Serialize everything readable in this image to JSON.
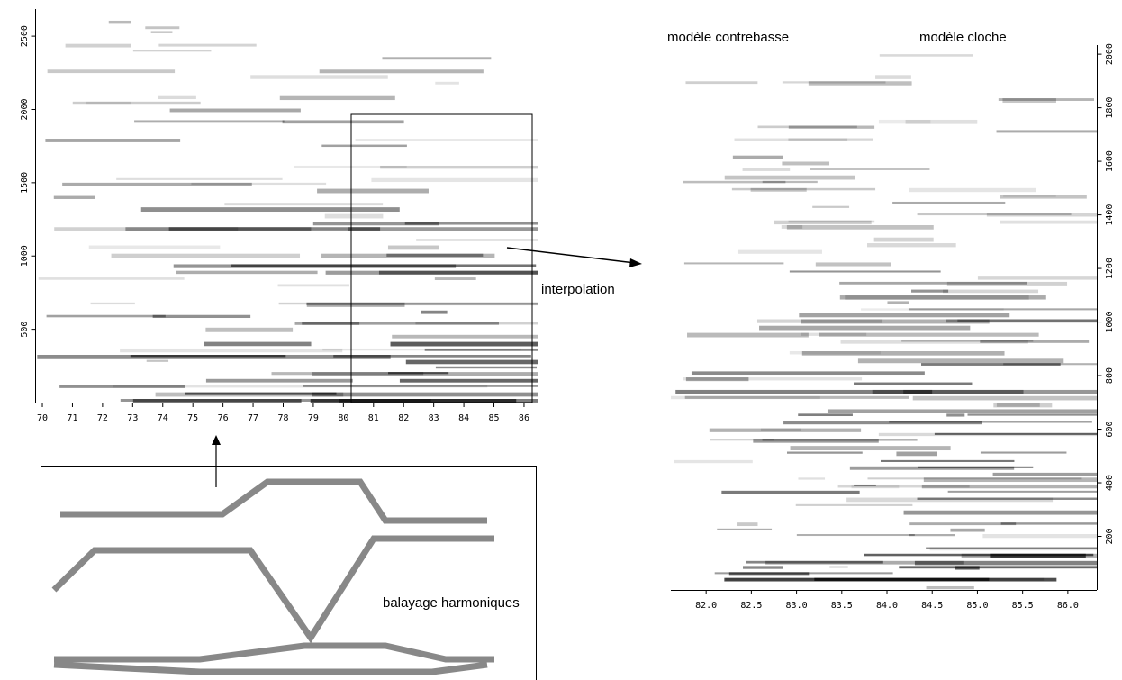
{
  "chart_data": [
    {
      "type": "spectrogram",
      "xlim": [
        69.79,
        86.45
      ],
      "xticks": [
        70,
        71,
        72,
        73,
        74,
        75,
        76,
        77,
        78,
        79,
        80,
        81,
        82,
        83,
        84,
        85,
        86
      ],
      "ylim": [
        0,
        2685
      ],
      "yticks": [
        500,
        1000,
        1500,
        2000,
        2500
      ]
    },
    {
      "type": "spectrogram",
      "title": "modèle contrebasse",
      "subtitle": "modèle cloche",
      "xlim": [
        81.61,
        86.32
      ],
      "xticks": [
        {
          "value": 82,
          "label": "82.0"
        },
        {
          "value": 82.5,
          "label": "82.5"
        },
        {
          "value": 83,
          "label": "83.0"
        },
        {
          "value": 83.5,
          "label": "83.5"
        },
        {
          "value": 84,
          "label": "84.0"
        },
        {
          "value": 84.5,
          "label": "84.5"
        },
        {
          "value": 85,
          "label": "85.0"
        },
        {
          "value": 85.5,
          "label": "85.5"
        },
        {
          "value": 86,
          "label": "86.0"
        }
      ],
      "ylim": [
        0,
        2034
      ],
      "yticks": [
        200,
        400,
        600,
        800,
        1000,
        1200,
        1400,
        1600,
        1800,
        2000
      ]
    }
  ],
  "annotations": {
    "arrow_label": "interpolation",
    "diagram_label": "balayage harmoniques"
  }
}
